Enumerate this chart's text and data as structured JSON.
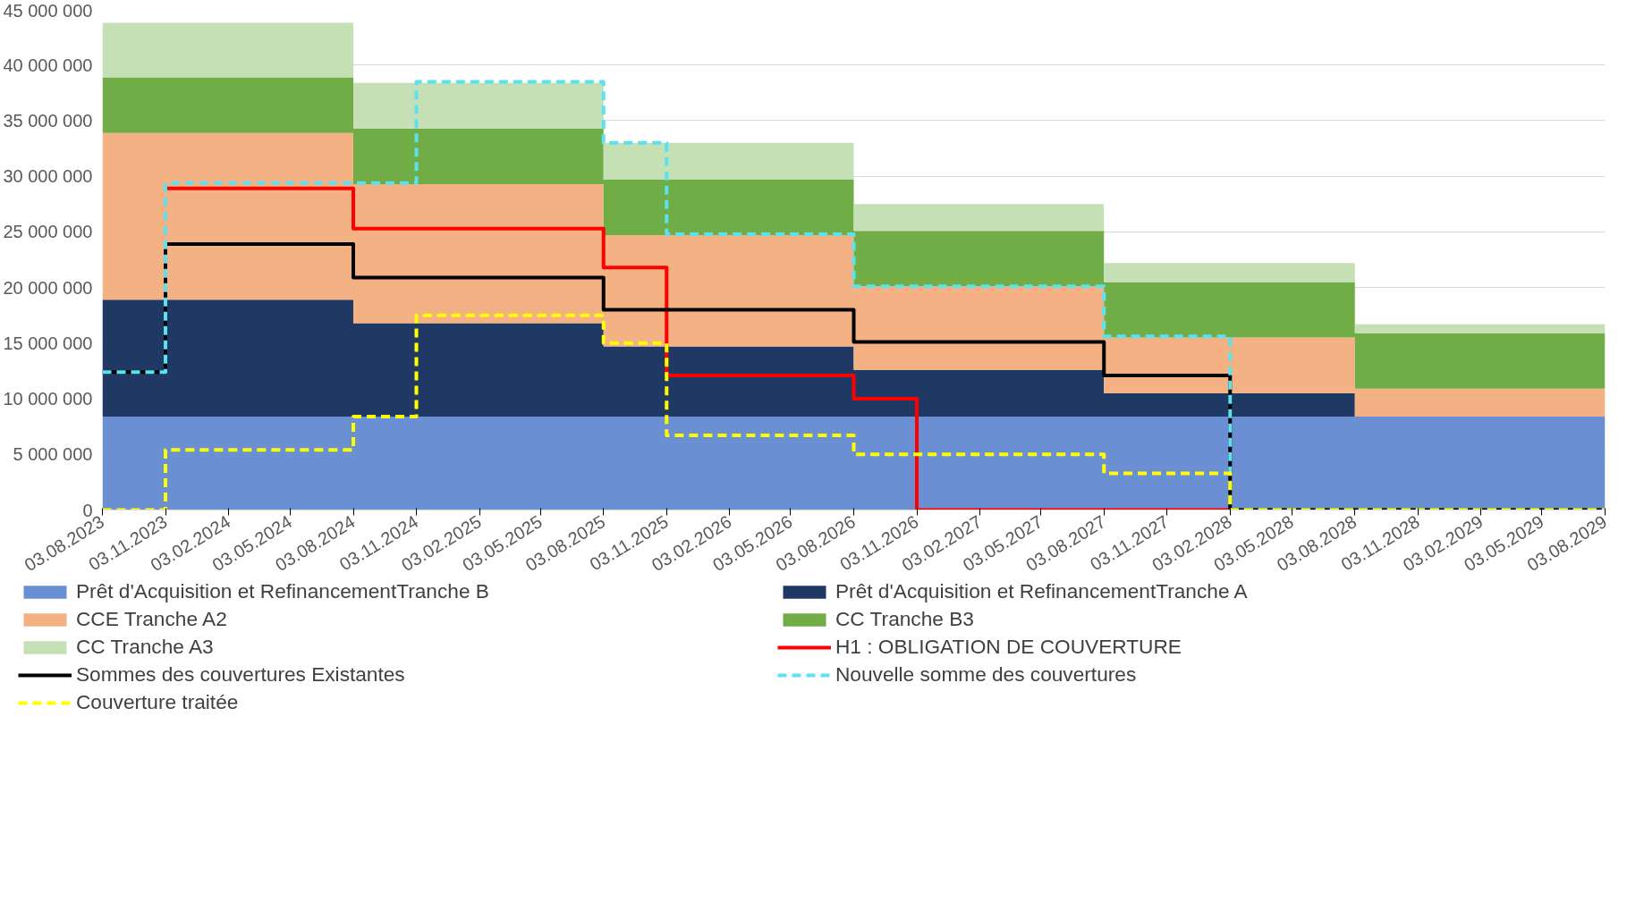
{
  "chart_data": {
    "type": "area",
    "stacked": true,
    "xlim": [
      "2023-08-03",
      "2029-08-03"
    ],
    "xticks": [
      {
        "value": "2023-08-03",
        "label": "03.08.2023"
      },
      {
        "value": "2023-11-03",
        "label": "03.11.2023"
      },
      {
        "value": "2024-02-03",
        "label": "03.02.2024"
      },
      {
        "value": "2024-05-03",
        "label": "03.05.2024"
      },
      {
        "value": "2024-08-03",
        "label": "03.08.2024"
      },
      {
        "value": "2024-11-03",
        "label": "03.11.2024"
      },
      {
        "value": "2025-02-03",
        "label": "03.02.2025"
      },
      {
        "value": "2025-05-03",
        "label": "03.05.2025"
      },
      {
        "value": "2025-08-03",
        "label": "03.08.2025"
      },
      {
        "value": "2025-11-03",
        "label": "03.11.2025"
      },
      {
        "value": "2026-02-03",
        "label": "03.02.2026"
      },
      {
        "value": "2026-05-03",
        "label": "03.05.2026"
      },
      {
        "value": "2026-08-03",
        "label": "03.08.2026"
      },
      {
        "value": "2026-11-03",
        "label": "03.11.2026"
      },
      {
        "value": "2027-02-03",
        "label": "03.02.2027"
      },
      {
        "value": "2027-05-03",
        "label": "03.05.2027"
      },
      {
        "value": "2027-08-03",
        "label": "03.08.2027"
      },
      {
        "value": "2027-11-03",
        "label": "03.11.2027"
      },
      {
        "value": "2028-02-03",
        "label": "03.02.2028"
      },
      {
        "value": "2028-05-03",
        "label": "03.05.2028"
      },
      {
        "value": "2028-08-03",
        "label": "03.08.2028"
      },
      {
        "value": "2028-11-03",
        "label": "03.11.2028"
      },
      {
        "value": "2029-02-03",
        "label": "03.02.2029"
      },
      {
        "value": "2029-05-03",
        "label": "03.05.2029"
      },
      {
        "value": "2029-08-03",
        "label": "03.08.2029"
      }
    ],
    "ylim": [
      0,
      45000000
    ],
    "yticks": [
      {
        "value": 0,
        "label": "0"
      },
      {
        "value": 5000000,
        "label": "5 000 000"
      },
      {
        "value": 10000000,
        "label": "10 000 000"
      },
      {
        "value": 15000000,
        "label": "15 000 000"
      },
      {
        "value": 20000000,
        "label": "20 000 000"
      },
      {
        "value": 25000000,
        "label": "25 000 000"
      },
      {
        "value": 30000000,
        "label": "30 000 000"
      },
      {
        "value": 35000000,
        "label": "35 000 000"
      },
      {
        "value": 40000000,
        "label": "40 000 000"
      },
      {
        "value": 45000000,
        "label": "45 000 000"
      }
    ],
    "grid": "y",
    "legend": "bottom",
    "series": [
      {
        "name": "Prêt d'Acquisition et RefinancementTranche B",
        "color": "#6a8fd2",
        "x": [
          "2023-08-03",
          "2024-08-03",
          "2025-08-03",
          "2026-08-03",
          "2027-08-03",
          "2028-08-03",
          "2029-08-03"
        ],
        "values": [
          8400000,
          8400000,
          8400000,
          8400000,
          8400000,
          8400000,
          8400000
        ]
      },
      {
        "name": "Prêt d'Acquisition et RefinancementTranche A",
        "color": "#203864",
        "x": [
          "2023-08-03",
          "2024-08-03",
          "2025-08-03",
          "2026-08-03",
          "2027-08-03",
          "2028-08-03",
          "2029-08-03"
        ],
        "values": [
          10500000,
          8400000,
          6300000,
          4200000,
          2100000,
          0,
          0
        ]
      },
      {
        "name": "CCE Tranche A2",
        "color": "#f4b183",
        "x": [
          "2023-08-03",
          "2024-08-03",
          "2025-08-03",
          "2026-08-03",
          "2027-08-03",
          "2028-08-03",
          "2029-08-03"
        ],
        "values": [
          15000000,
          12500000,
          10000000,
          7500000,
          5000000,
          2500000,
          2500000
        ]
      },
      {
        "name": "CC Tranche B3",
        "color": "#70ad47",
        "x": [
          "2023-08-03",
          "2024-08-03",
          "2025-08-03",
          "2026-08-03",
          "2027-08-03",
          "2028-08-03",
          "2029-08-03"
        ],
        "values": [
          5000000,
          5000000,
          5000000,
          5000000,
          5000000,
          5000000,
          5000000
        ]
      },
      {
        "name": "CC Tranche A3",
        "color": "#c5e0b4",
        "x": [
          "2023-08-03",
          "2024-08-03",
          "2025-08-03",
          "2026-08-03",
          "2027-08-03",
          "2028-08-03",
          "2029-08-03"
        ],
        "values": [
          4900000,
          4100000,
          3300000,
          2400000,
          1700000,
          800000,
          800000
        ]
      },
      {
        "name": "H1 : OBLIGATION DE COUVERTURE",
        "type": "step",
        "color": "#ff0000",
        "line_style": "solid",
        "x": [
          "2023-11-03",
          "2024-08-03",
          "2025-08-03",
          "2025-11-03",
          "2026-08-03",
          "2026-11-03",
          "2028-02-03"
        ],
        "values": [
          28900000,
          25300000,
          21800000,
          12100000,
          10000000,
          0,
          0
        ]
      },
      {
        "name": "Sommes des couvertures Existantes",
        "type": "step",
        "color": "#000000",
        "line_style": "solid",
        "x": [
          "2023-08-03",
          "2023-11-03",
          "2024-08-03",
          "2025-08-03",
          "2026-08-03",
          "2027-08-03",
          "2028-02-03",
          "2029-08-03"
        ],
        "values": [
          12400000,
          23900000,
          20900000,
          18000000,
          15100000,
          12100000,
          0,
          0
        ]
      },
      {
        "name": "Nouvelle somme des couvertures",
        "type": "step",
        "color": "#5ce1f0",
        "line_style": "dashed",
        "x": [
          "2023-08-03",
          "2023-11-03",
          "2024-11-03",
          "2025-08-03",
          "2025-11-03",
          "2026-08-03",
          "2027-08-03",
          "2028-02-03",
          "2029-08-03"
        ],
        "values": [
          12400000,
          29400000,
          38500000,
          33000000,
          24800000,
          20100000,
          15600000,
          0,
          0
        ]
      },
      {
        "name": "Couverture traitée",
        "type": "step",
        "color": "#ffff00",
        "line_style": "dashed",
        "x": [
          "2023-08-03",
          "2023-11-03",
          "2024-08-03",
          "2024-11-03",
          "2025-08-03",
          "2025-11-03",
          "2026-08-03",
          "2027-08-03",
          "2028-02-03",
          "2029-08-03"
        ],
        "values": [
          0,
          5400000,
          8400000,
          17500000,
          15000000,
          6700000,
          5000000,
          3300000,
          0,
          0
        ]
      }
    ]
  }
}
